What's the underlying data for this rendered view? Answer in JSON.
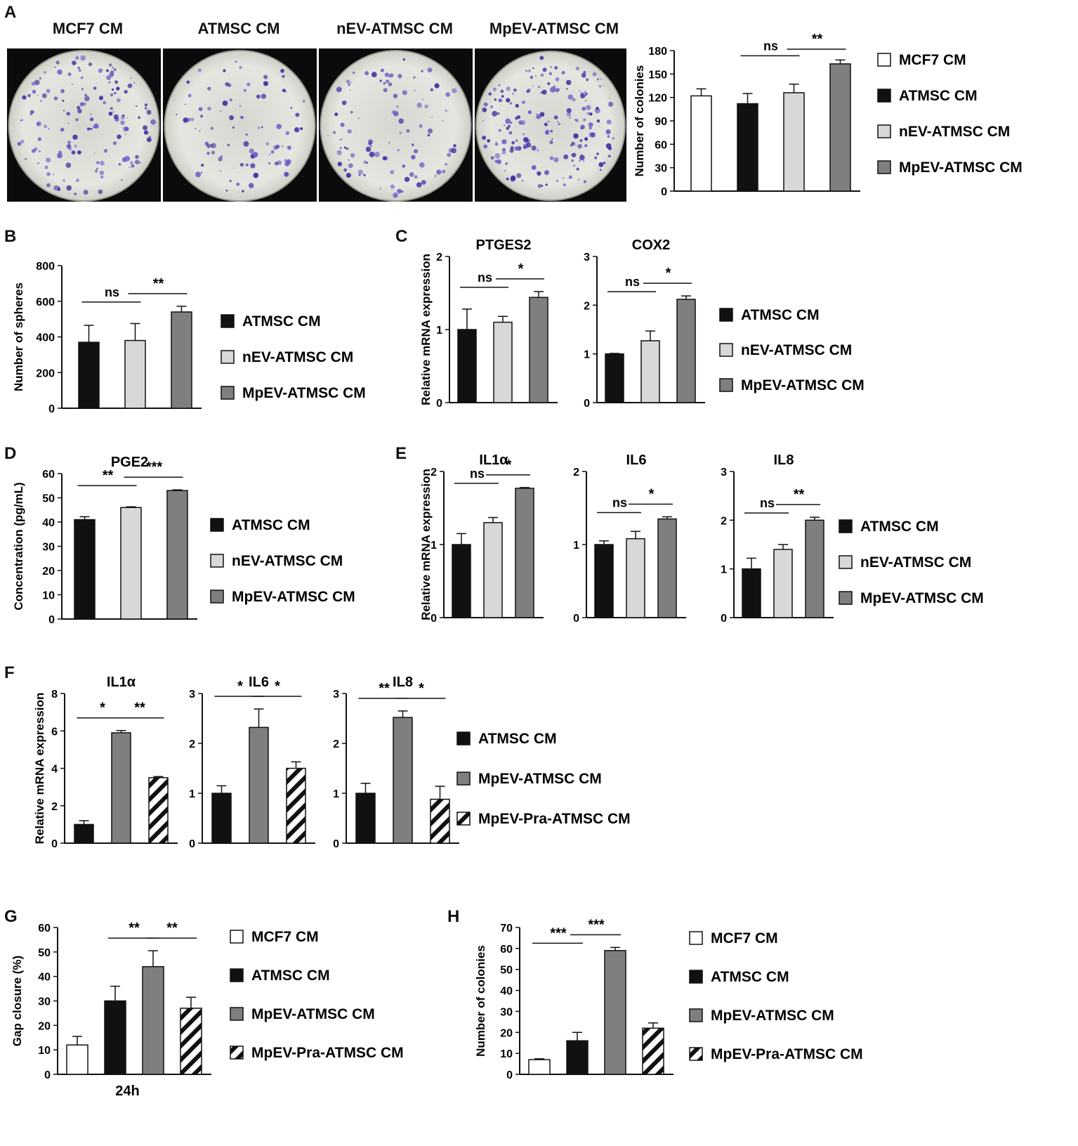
{
  "panel_letters": [
    "A",
    "B",
    "C",
    "D",
    "E",
    "F",
    "G",
    "H"
  ],
  "photos": {
    "titles": [
      "MCF7 CM",
      "ATMSC CM",
      "nEV-ATMSC CM",
      "MpEV-ATMSC CM"
    ]
  },
  "group_colors": {
    "MCF7 CM": "#ffffff",
    "ATMSC CM": "#111111",
    "nEV-ATMSC CM": "#d8d8d8",
    "MpEV-ATMSC CM": "#7f7f7f",
    "MpEV-Pra-ATMSC CM": "hatched"
  },
  "chart_data": [
    {
      "id": "A",
      "type": "bar",
      "title": "",
      "xlabel": "",
      "ylabel": "Number of colonies",
      "categories": [
        "MCF7 CM",
        "ATMSC CM",
        "nEV-ATMSC CM",
        "MpEV-ATMSC CM"
      ],
      "values": [
        122,
        112,
        126,
        163
      ],
      "errors": [
        9,
        13,
        11,
        5
      ],
      "ylim": [
        0,
        180
      ],
      "yticks": [
        "0",
        "30",
        "60",
        "90",
        "120",
        "150",
        "180"
      ],
      "sig": [
        {
          "from": 1,
          "to": 2,
          "label": "ns"
        },
        {
          "from": 2,
          "to": 3,
          "label": "**"
        }
      ],
      "legend": [
        "MCF7 CM",
        "ATMSC CM",
        "nEV-ATMSC CM",
        "MpEV-ATMSC CM"
      ],
      "legend_position": "right"
    },
    {
      "id": "B",
      "type": "bar",
      "title": "",
      "xlabel": "",
      "ylabel": "Number of spheres",
      "categories": [
        "ATMSC CM",
        "nEV-ATMSC CM",
        "MpEV-ATMSC CM"
      ],
      "values": [
        370,
        380,
        540
      ],
      "errors": [
        95,
        95,
        32
      ],
      "ylim": [
        0,
        800
      ],
      "yticks": [
        "0",
        "200",
        "400",
        "600",
        "800"
      ],
      "sig": [
        {
          "from": 0,
          "to": 1,
          "label": "ns"
        },
        {
          "from": 1,
          "to": 2,
          "label": "**"
        }
      ],
      "legend": [
        "ATMSC CM",
        "nEV-ATMSC CM",
        "MpEV-ATMSC CM"
      ],
      "legend_position": "right"
    },
    {
      "id": "C-PTGES2",
      "type": "bar",
      "title": "PTGES2",
      "xlabel": "",
      "ylabel": "Relative mRNA expression",
      "categories": [
        "ATMSC CM",
        "nEV-ATMSC CM",
        "MpEV-ATMSC CM"
      ],
      "values": [
        1.0,
        1.1,
        1.44
      ],
      "errors": [
        0.28,
        0.08,
        0.08
      ],
      "ylim": [
        0,
        2
      ],
      "yticks": [
        "0",
        "1",
        "2"
      ],
      "sig": [
        {
          "from": 0,
          "to": 1,
          "label": "ns"
        },
        {
          "from": 1,
          "to": 2,
          "label": "*"
        }
      ]
    },
    {
      "id": "C-COX2",
      "type": "bar",
      "title": "COX2",
      "xlabel": "",
      "ylabel": "",
      "categories": [
        "ATMSC CM",
        "nEV-ATMSC CM",
        "MpEV-ATMSC CM"
      ],
      "values": [
        1.0,
        1.27,
        2.12
      ],
      "errors": [
        0.01,
        0.2,
        0.07
      ],
      "ylim": [
        0,
        3
      ],
      "yticks": [
        "0",
        "1",
        "2",
        "3"
      ],
      "sig": [
        {
          "from": 0,
          "to": 1,
          "label": "ns"
        },
        {
          "from": 1,
          "to": 2,
          "label": "*"
        }
      ],
      "legend": [
        "ATMSC CM",
        "nEV-ATMSC CM",
        "MpEV-ATMSC CM"
      ],
      "legend_position": "right"
    },
    {
      "id": "D",
      "type": "bar",
      "title": "PGE2",
      "xlabel": "",
      "ylabel": "Concentration (pg/mL)",
      "categories": [
        "ATMSC CM",
        "nEV-ATMSC CM",
        "MpEV-ATMSC CM"
      ],
      "values": [
        41,
        46,
        53
      ],
      "errors": [
        1.2,
        0.3,
        0.3
      ],
      "ylim": [
        0,
        60
      ],
      "yticks": [
        "0",
        "10",
        "20",
        "30",
        "40",
        "50",
        "60"
      ],
      "sig": [
        {
          "from": 0,
          "to": 1,
          "label": "**"
        },
        {
          "from": 1,
          "to": 2,
          "label": "***"
        }
      ],
      "legend": [
        "ATMSC CM",
        "nEV-ATMSC CM",
        "MpEV-ATMSC CM"
      ],
      "legend_position": "right"
    },
    {
      "id": "E-IL1a",
      "type": "bar",
      "title": "IL1α",
      "xlabel": "",
      "ylabel": "Relative mRNA expression",
      "categories": [
        "ATMSC CM",
        "nEV-ATMSC CM",
        "MpEV-ATMSC CM"
      ],
      "values": [
        1.0,
        1.3,
        1.77
      ],
      "errors": [
        0.15,
        0.07,
        0.01
      ],
      "ylim": [
        0,
        2
      ],
      "yticks": [
        "0",
        "1",
        "2"
      ],
      "sig": [
        {
          "from": 0,
          "to": 1,
          "label": "ns"
        },
        {
          "from": 1,
          "to": 2,
          "label": "*"
        }
      ]
    },
    {
      "id": "E-IL6",
      "type": "bar",
      "title": "IL6",
      "xlabel": "",
      "ylabel": "",
      "categories": [
        "ATMSC CM",
        "nEV-ATMSC CM",
        "MpEV-ATMSC CM"
      ],
      "values": [
        1.0,
        1.08,
        1.35
      ],
      "errors": [
        0.05,
        0.1,
        0.03
      ],
      "ylim": [
        0,
        2
      ],
      "yticks": [
        "0",
        "1",
        "2"
      ],
      "sig": [
        {
          "from": 0,
          "to": 1,
          "label": "ns"
        },
        {
          "from": 1,
          "to": 2,
          "label": "*"
        }
      ]
    },
    {
      "id": "E-IL8",
      "type": "bar",
      "title": "IL8",
      "xlabel": "",
      "ylabel": "",
      "categories": [
        "ATMSC CM",
        "nEV-ATMSC CM",
        "MpEV-ATMSC CM"
      ],
      "values": [
        1.0,
        1.4,
        2.0
      ],
      "errors": [
        0.22,
        0.1,
        0.06
      ],
      "ylim": [
        0,
        3
      ],
      "yticks": [
        "0",
        "1",
        "2",
        "3"
      ],
      "sig": [
        {
          "from": 0,
          "to": 1,
          "label": "ns"
        },
        {
          "from": 1,
          "to": 2,
          "label": "**"
        }
      ],
      "legend": [
        "ATMSC CM",
        "nEV-ATMSC CM",
        "MpEV-ATMSC CM"
      ],
      "legend_position": "right"
    },
    {
      "id": "F-IL1a",
      "type": "bar",
      "title": "IL1α",
      "xlabel": "",
      "ylabel": "Relative mRNA expression",
      "categories": [
        "ATMSC CM",
        "MpEV-ATMSC CM",
        "MpEV-Pra-ATMSC CM"
      ],
      "values": [
        1.0,
        5.9,
        3.5
      ],
      "errors": [
        0.2,
        0.12,
        0.06
      ],
      "ylim": [
        0,
        8
      ],
      "yticks": [
        "0",
        "2",
        "4",
        "6",
        "8"
      ],
      "sig": [
        {
          "from": 0,
          "to": 1,
          "label": "*"
        },
        {
          "from": 1,
          "to": 2,
          "label": "**"
        }
      ]
    },
    {
      "id": "F-IL6",
      "type": "bar",
      "title": "IL6",
      "xlabel": "",
      "ylabel": "",
      "categories": [
        "ATMSC CM",
        "MpEV-ATMSC CM",
        "MpEV-Pra-ATMSC CM"
      ],
      "values": [
        1.0,
        2.32,
        1.5
      ],
      "errors": [
        0.15,
        0.37,
        0.13
      ],
      "ylim": [
        0,
        3
      ],
      "yticks": [
        "0",
        "1",
        "2",
        "3"
      ],
      "sig": [
        {
          "from": 0,
          "to": 1,
          "label": "*"
        },
        {
          "from": 1,
          "to": 2,
          "label": "*"
        }
      ]
    },
    {
      "id": "F-IL8",
      "type": "bar",
      "title": "IL8",
      "xlabel": "",
      "ylabel": "",
      "categories": [
        "ATMSC CM",
        "MpEV-ATMSC CM",
        "MpEV-Pra-ATMSC CM"
      ],
      "values": [
        1.0,
        2.52,
        0.88
      ],
      "errors": [
        0.2,
        0.13,
        0.26
      ],
      "ylim": [
        0,
        3
      ],
      "yticks": [
        "0",
        "1",
        "2",
        "3"
      ],
      "sig": [
        {
          "from": 0,
          "to": 1,
          "label": "**"
        },
        {
          "from": 1,
          "to": 2,
          "label": "*"
        }
      ],
      "legend": [
        "ATMSC CM",
        "MpEV-ATMSC CM",
        "MpEV-Pra-ATMSC CM"
      ],
      "legend_position": "right"
    },
    {
      "id": "G",
      "type": "bar",
      "title": "",
      "xlabel": "24h",
      "ylabel": "Gap closure (%)",
      "categories": [
        "MCF7 CM",
        "ATMSC CM",
        "MpEV-ATMSC CM",
        "MpEV-Pra-ATMSC CM"
      ],
      "values": [
        12,
        30,
        44,
        27
      ],
      "errors": [
        3.5,
        6,
        6.5,
        4.5
      ],
      "ylim": [
        0,
        60
      ],
      "yticks": [
        "0",
        "10",
        "20",
        "30",
        "40",
        "50",
        "60"
      ],
      "sig": [
        {
          "from": 1,
          "to": 2,
          "label": "**"
        },
        {
          "from": 2,
          "to": 3,
          "label": "**"
        }
      ],
      "legend": [
        "MCF7 CM",
        "ATMSC CM",
        "MpEV-ATMSC CM",
        "MpEV-Pra-ATMSC CM"
      ],
      "legend_position": "right"
    },
    {
      "id": "H",
      "type": "bar",
      "title": "",
      "xlabel": "",
      "ylabel": "Number of colonies",
      "categories": [
        "MCF7 CM",
        "ATMSC CM",
        "MpEV-ATMSC CM",
        "MpEV-Pra-ATMSC CM"
      ],
      "values": [
        7,
        16,
        59,
        22
      ],
      "errors": [
        0.4,
        4,
        1.5,
        2.5
      ],
      "ylim": [
        0,
        70
      ],
      "yticks": [
        "0",
        "10",
        "20",
        "30",
        "40",
        "50",
        "60",
        "70"
      ],
      "sig": [
        {
          "from": 0,
          "to": 1,
          "label": "***"
        },
        {
          "from": 1,
          "to": 2,
          "label": "***"
        }
      ],
      "legend": [
        "MCF7 CM",
        "ATMSC CM",
        "MpEV-ATMSC CM",
        "MpEV-Pra-ATMSC CM"
      ],
      "legend_position": "right"
    }
  ]
}
